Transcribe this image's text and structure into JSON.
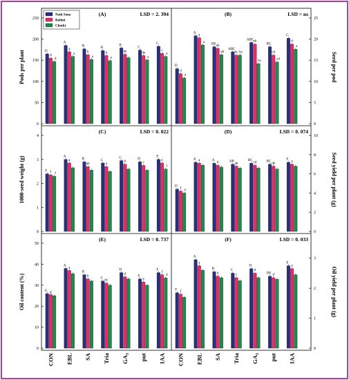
{
  "chart_data": {
    "type": "bar",
    "categories": [
      "CON",
      "EBL",
      "SA",
      "Tria",
      "GA3",
      "put",
      "IAA"
    ],
    "category_display": [
      {
        "main": "CON",
        "sub": ""
      },
      {
        "main": "EBL",
        "sub": ""
      },
      {
        "main": "SA",
        "sub": ""
      },
      {
        "main": "Tria",
        "sub": ""
      },
      {
        "main": "GA",
        "sub": "3"
      },
      {
        "main": "put",
        "sub": ""
      },
      {
        "main": "IAA",
        "sub": ""
      }
    ],
    "legend": {
      "placement": "top-left",
      "entries": [
        {
          "name": "Nath Sona",
          "color": "#2a2f7d"
        },
        {
          "name": "Rohini",
          "color": "#e62b6b"
        },
        {
          "name": "Chutki",
          "color": "#1f8a4c"
        }
      ]
    },
    "grid": false,
    "panels": [
      {
        "id": "A",
        "label": "(A)",
        "lsd": "LSD = 2. 394",
        "ylabel": "Pods per plant",
        "axis_side": "left",
        "ylim": [
          0,
          250
        ],
        "yticks": [
          "0",
          "50",
          "100",
          "150",
          "200",
          "250"
        ],
        "ytick_values": [
          0,
          50,
          100,
          150,
          200,
          250
        ],
        "series": [
          {
            "name": "Nath Sona",
            "values": [
              165,
              185,
              177,
              173,
              179,
              174,
              183
            ],
            "labels": [
              "D",
              "A",
              "B",
              "B",
              "B",
              "C",
              "C"
            ]
          },
          {
            "name": "Rohini",
            "values": [
              155,
              170,
              163,
              161,
              164,
              161,
              166
            ],
            "labels": [
              "d",
              "a",
              "b",
              "b",
              "de",
              "de",
              "c"
            ]
          },
          {
            "name": "Chutki",
            "values": [
              147,
              159,
              152,
              149,
              156,
              151,
              159
            ],
            "labels": [
              "d",
              "a",
              "a",
              "a",
              "",
              "a",
              "a"
            ]
          }
        ]
      },
      {
        "id": "B",
        "label": "(B)",
        "lsd": "LSD = ns",
        "ylabel": "Seed per pod",
        "axis_side": "right",
        "ylim": [
          0,
          25
        ],
        "yticks": [
          "0",
          "5",
          "10",
          "15",
          "20",
          "25"
        ],
        "ytick_values": [
          0,
          5,
          10,
          15,
          20,
          25
        ],
        "series": [
          {
            "name": "Nath Sona",
            "values": [
              13,
              20.8,
              18.2,
              17,
              19.2,
              18.2,
              20.2
            ],
            "labels": [
              "D",
              "A",
              "AB",
              "ABC",
              "ABC",
              "BC",
              "C"
            ]
          },
          {
            "name": "Rohini",
            "values": [
              11.8,
              20.3,
              17.8,
              16.2,
              18.8,
              16.2,
              18.8
            ],
            "labels": [
              "d",
              "a",
              "ab",
              "bc",
              "ab",
              "cd",
              "d"
            ]
          },
          {
            "name": "Chutki",
            "values": [
              10.8,
              18.6,
              16.3,
              16.2,
              14.2,
              14.6,
              17.6
            ],
            "labels": [
              "e",
              "a",
              "ab",
              "bc",
              "bc",
              "cd",
              "a"
            ]
          }
        ]
      },
      {
        "id": "C",
        "label": "(C)",
        "lsd": "LSD = 0. 022",
        "ylabel": "1000-seed weight (g)",
        "axis_side": "left",
        "ylim": [
          0,
          4
        ],
        "yticks": [
          "0",
          "1",
          "2",
          "3",
          "4"
        ],
        "ytick_values": [
          0,
          1,
          2,
          3,
          4
        ],
        "series": [
          {
            "name": "Nath Sona",
            "values": [
              2.4,
              3.0,
              2.9,
              2.85,
              2.95,
              2.9,
              3.0
            ],
            "labels": [
              "F",
              "A",
              "B",
              "C",
              "C",
              "D",
              "E"
            ]
          },
          {
            "name": "Rohini",
            "values": [
              2.35,
              2.85,
              2.7,
              2.7,
              2.8,
              2.75,
              2.85
            ],
            "labels": [
              "f",
              "a",
              "ab",
              "a",
              "b",
              "c",
              "e"
            ]
          },
          {
            "name": "Chutki",
            "values": [
              2.3,
              2.65,
              2.55,
              2.5,
              2.6,
              2.55,
              2.6
            ],
            "labels": [
              "f",
              "",
              "",
              "",
              "",
              "",
              "f"
            ]
          }
        ]
      },
      {
        "id": "D",
        "label": "(D)",
        "lsd": "LSD = 0. 074",
        "ylabel": "Seed yield per plant (g)",
        "axis_side": "right",
        "ylim": [
          0,
          10
        ],
        "yticks": [
          "0",
          "2",
          "4",
          "6",
          "8",
          "10"
        ],
        "ytick_values": [
          0,
          2,
          4,
          6,
          8,
          10
        ],
        "series": [
          {
            "name": "Nath Sona",
            "values": [
              4.4,
              7.2,
              7.1,
              7.0,
              7.1,
              7.0,
              7.2
            ],
            "labels": [
              "D",
              "A",
              "A",
              "AB",
              "BC",
              "BC",
              "E"
            ]
          },
          {
            "name": "Rohini",
            "values": [
              4.2,
              7.1,
              6.9,
              6.8,
              6.9,
              6.8,
              7.0
            ],
            "labels": [
              "f",
              "a",
              "b",
              "ab",
              "cd",
              "de",
              "a"
            ]
          },
          {
            "name": "Chutki",
            "values": [
              4.0,
              6.9,
              6.7,
              6.6,
              6.6,
              6.5,
              6.8
            ],
            "labels": [
              "e",
              "",
              "",
              "",
              "",
              "",
              ""
            ]
          }
        ]
      },
      {
        "id": "E",
        "label": "(E)",
        "lsd": "LSD = 0. 737",
        "ylabel": "Oil content (%)",
        "axis_side": "left",
        "ylim": [
          0,
          50
        ],
        "yticks": [
          "0",
          "10",
          "20",
          "30",
          "40",
          "50"
        ],
        "ytick_values": [
          0,
          10,
          20,
          30,
          40,
          50
        ],
        "series": [
          {
            "name": "Nath Sona",
            "values": [
              26,
              38,
              35,
              32,
              36,
              33,
              36
            ],
            "labels": [
              "G",
              "A",
              "B",
              "C",
              "D",
              "E",
              "F"
            ]
          },
          {
            "name": "Rohini",
            "values": [
              25.5,
              37,
              33,
              31,
              34,
              31.5,
              35
            ],
            "labels": [
              "g",
              "a",
              "b",
              "bc",
              "d",
              "e",
              "f"
            ]
          },
          {
            "name": "Chutki",
            "values": [
              25,
              35.5,
              32,
              30,
              33,
              30,
              33.5
            ],
            "labels": [
              "",
              "",
              "",
              "",
              "",
              "",
              "d"
            ]
          }
        ]
      },
      {
        "id": "F",
        "label": "(F)",
        "lsd": "LSD = 0. 033",
        "ylabel": "Oil yield per plant (g)",
        "axis_side": "right",
        "ylim": [
          0,
          3.5
        ],
        "yticks": [
          "0",
          "1",
          "2",
          "3"
        ],
        "ytick_values": [
          0,
          1,
          2,
          3
        ],
        "series": [
          {
            "name": "Nath Sona",
            "values": [
              1.85,
              2.95,
              2.55,
              2.5,
              2.65,
              2.4,
              2.75
            ],
            "labels": [
              "F",
              "A",
              "B",
              "C",
              "D",
              "DE",
              "E"
            ]
          },
          {
            "name": "Rohini",
            "values": [
              1.8,
              2.75,
              2.4,
              2.35,
              2.5,
              2.35,
              2.65
            ],
            "labels": [
              "f",
              "a",
              "b",
              "c",
              "d",
              "d",
              "a"
            ]
          },
          {
            "name": "Chutki",
            "values": [
              1.7,
              2.6,
              2.35,
              2.25,
              2.35,
              2.3,
              2.45
            ],
            "labels": [
              "",
              "",
              "",
              "",
              "",
              "",
              ""
            ]
          }
        ]
      }
    ]
  }
}
